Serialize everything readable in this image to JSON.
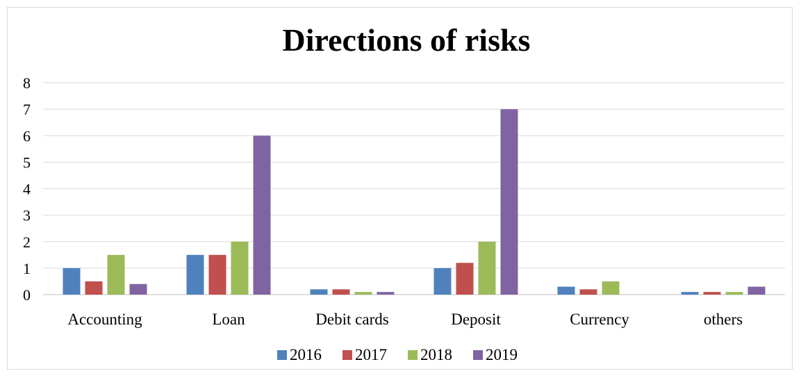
{
  "chart_data": {
    "type": "bar",
    "title": "Directions of risks",
    "categories": [
      "Accounting",
      "Loan",
      "Debit cards",
      "Deposit",
      "Currency",
      "others"
    ],
    "series": [
      {
        "name": "2016",
        "color": "#4f81bd",
        "values": [
          1,
          1.5,
          0.2,
          1,
          0.3,
          0.1
        ]
      },
      {
        "name": "2017",
        "color": "#c0504d",
        "values": [
          0.5,
          1.5,
          0.2,
          1.2,
          0.2,
          0.1
        ]
      },
      {
        "name": "2018",
        "color": "#9bbb59",
        "values": [
          1.5,
          2,
          0.1,
          2,
          0.5,
          0.1
        ]
      },
      {
        "name": "2019",
        "color": "#8064a2",
        "values": [
          0.4,
          6,
          0.1,
          7,
          0,
          0.3
        ]
      }
    ],
    "yticks": [
      "0",
      "1",
      "2",
      "3",
      "4",
      "5",
      "6",
      "7",
      "8"
    ],
    "ylim": [
      0,
      8
    ],
    "grid": true,
    "legend_position": "bottom"
  }
}
